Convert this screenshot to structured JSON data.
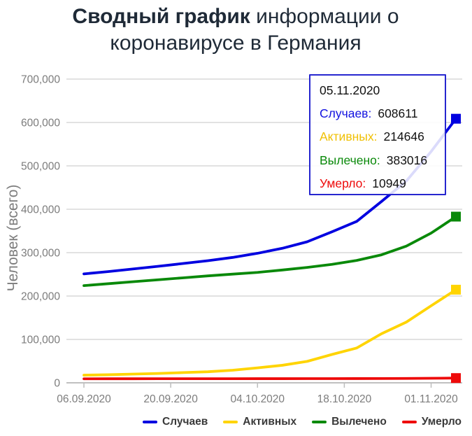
{
  "title": {
    "bold": "Сводный график",
    "rest": " информации о коронавирусе в Германия"
  },
  "tooltip": {
    "date": "05.11.2020",
    "rows": [
      {
        "label": "Случаев:",
        "value": "608611",
        "color": "#1212e0"
      },
      {
        "label": "Активных:",
        "value": "214646",
        "color": "#f0c004"
      },
      {
        "label": "Вылечено:",
        "value": "383016",
        "color": "#098909"
      },
      {
        "label": "Умерло:",
        "value": "10949",
        "color": "#ee0a0a"
      }
    ],
    "border_color": "#2626cf"
  },
  "chart_data": {
    "type": "line",
    "title": "Сводный график информации о коронавирусе в Германия",
    "xlabel": "",
    "ylabel": "Человек (всего)",
    "ylim": [
      0,
      700000
    ],
    "ytick_step": 100000,
    "y_tick_labels": [
      "0",
      "100,000",
      "200,000",
      "300,000",
      "400,000",
      "500,000",
      "600,000",
      "700,000"
    ],
    "grid": true,
    "legend_position": "bottom",
    "x_tick_labels": [
      "06.09.2020",
      "20.09.2020",
      "04.10.2020",
      "18.10.2020",
      "01.11.2020"
    ],
    "x_tick_days": [
      0,
      14,
      28,
      42,
      56
    ],
    "x_max_day": 60,
    "x_days": [
      0,
      4,
      8,
      12,
      16,
      20,
      24,
      28,
      32,
      36,
      40,
      44,
      48,
      52,
      56,
      60
    ],
    "series": [
      {
        "name": "Вылечено",
        "color": "#098909",
        "values": [
          224000,
          228500,
          233000,
          237500,
          242000,
          246500,
          250500,
          254500,
          260000,
          266000,
          273000,
          282000,
          295000,
          315000,
          345000,
          383016
        ]
      },
      {
        "name": "Случаев",
        "color": "#0000e0",
        "values": [
          251000,
          256500,
          262500,
          268500,
          275000,
          281500,
          289000,
          298500,
          310000,
          325000,
          348000,
          372000,
          418000,
          465000,
          533000,
          608611
        ]
      },
      {
        "name": "Активных",
        "color": "#ffd400",
        "values": [
          17675,
          18645,
          20110,
          21580,
          23550,
          25520,
          28990,
          34460,
          40420,
          49370,
          65310,
          80240,
          113100,
          139880,
          177520,
          214646
        ]
      },
      {
        "name": "Умерло",
        "color": "#ee0a0a",
        "values": [
          9325,
          9355,
          9390,
          9420,
          9450,
          9480,
          9510,
          9540,
          9580,
          9630,
          9690,
          9760,
          9900,
          10120,
          10480,
          10949
        ]
      }
    ],
    "legend_order": [
      "Случаев",
      "Активных",
      "Вылечено",
      "Умерло"
    ]
  },
  "colors": {
    "grid": "#d0d0d0",
    "axis": "#ababab",
    "tick_text": "#7c7c7c",
    "title_text": "#1f2a37"
  }
}
